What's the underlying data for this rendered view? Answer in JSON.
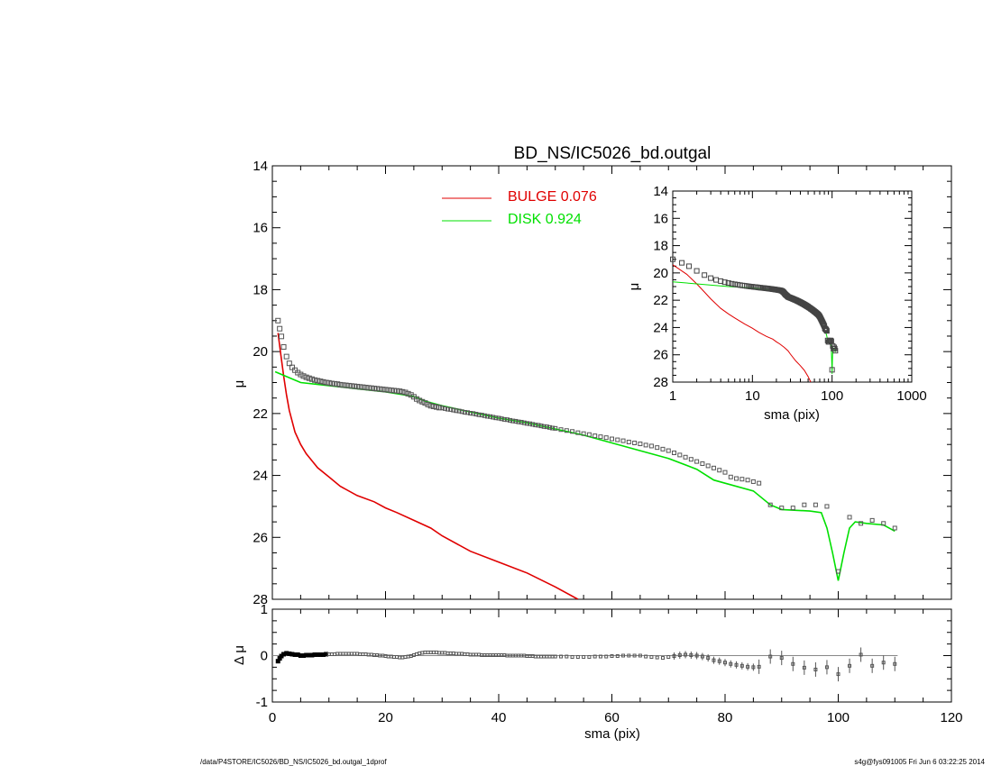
{
  "title": "BD_NS/IC5026_bd.outgal",
  "footer": {
    "left": "/data/P4STORE/IC5026/BD_NS/IC5026_bd.outgal_1dprof",
    "right": "s4g@fys091005  Fri Jun  6 03:22:25 2014"
  },
  "colors": {
    "bulge": "#e00000",
    "disk": "#00e000",
    "data": "#555555",
    "axes": "#000000"
  },
  "legend": [
    {
      "label": "BULGE  0.076",
      "color": "#e00000"
    },
    {
      "label": "DISK  0.924",
      "color": "#00e000"
    }
  ],
  "chart_data": [
    {
      "type": "line",
      "panel": "main",
      "xlabel": "",
      "ylabel": "μ",
      "xlim": [
        0,
        120
      ],
      "ylim": [
        28,
        14
      ],
      "y_inverted": true,
      "yticks": [
        14,
        16,
        18,
        20,
        22,
        24,
        26,
        28
      ],
      "series": [
        {
          "name": "BULGE  0.076",
          "color": "#e00000",
          "x": [
            1,
            1.5,
            2,
            2.5,
            3,
            4,
            5,
            6,
            8,
            10,
            12,
            15,
            18,
            20,
            22,
            25,
            28,
            30,
            35,
            40,
            45,
            50,
            54
          ],
          "y": [
            19.4,
            20.1,
            20.8,
            21.4,
            21.9,
            22.6,
            23.0,
            23.3,
            23.75,
            24.05,
            24.35,
            24.65,
            24.85,
            25.05,
            25.2,
            25.45,
            25.7,
            25.95,
            26.45,
            26.8,
            27.15,
            27.6,
            28.0
          ]
        },
        {
          "name": "DISK  0.924",
          "color": "#00e000",
          "x": [
            0.5,
            5,
            10,
            15,
            20,
            25,
            27,
            30,
            35,
            40,
            45,
            50,
            55,
            60,
            65,
            70,
            75,
            78,
            80,
            85,
            88,
            90,
            95,
            97,
            98,
            99,
            100,
            101,
            102,
            103,
            105,
            108,
            110
          ],
          "y": [
            20.65,
            21.0,
            21.1,
            21.2,
            21.3,
            21.45,
            21.6,
            21.75,
            21.95,
            22.15,
            22.3,
            22.5,
            22.7,
            22.95,
            23.2,
            23.45,
            23.8,
            24.15,
            24.25,
            24.5,
            24.95,
            25.1,
            25.15,
            25.2,
            25.7,
            26.5,
            27.4,
            26.5,
            25.7,
            25.5,
            25.55,
            25.6,
            25.8
          ]
        }
      ],
      "points": {
        "x": [
          1.0,
          1.3,
          1.6,
          2.0,
          2.5,
          3.0,
          3.5,
          4.0,
          4.5,
          5.0,
          5.5,
          6.0,
          6.5,
          7.0,
          7.5,
          8.0,
          8.5,
          9.0,
          9.5,
          10.0,
          10.5,
          11.0,
          11.5,
          12.0,
          12.5,
          13.0,
          13.5,
          14.0,
          14.5,
          15.0,
          15.5,
          16.0,
          16.5,
          17.0,
          17.5,
          18.0,
          18.5,
          19.0,
          19.5,
          20.0,
          20.5,
          21.0,
          21.5,
          22.0,
          22.5,
          23.0,
          23.5,
          24.0,
          24.5,
          25.0,
          25.5,
          26.0,
          26.5,
          27.0,
          27.5,
          28.0,
          28.5,
          29.0,
          29.5,
          30.0,
          30.5,
          31.0,
          31.5,
          32.0,
          32.5,
          33.0,
          33.5,
          34.0,
          34.5,
          35.0,
          35.5,
          36.0,
          36.5,
          37.0,
          37.5,
          38.0,
          38.5,
          39.0,
          39.5,
          40.0,
          40.5,
          41.0,
          41.5,
          42.0,
          42.5,
          43.0,
          43.5,
          44.0,
          44.5,
          45.0,
          45.5,
          46.0,
          46.5,
          47.0,
          47.5,
          48.0,
          48.5,
          49.0,
          49.5,
          50.0,
          51.0,
          52.0,
          53.0,
          54.0,
          55.0,
          56.0,
          57.0,
          58.0,
          59.0,
          60.0,
          61.0,
          62.0,
          63.0,
          64.0,
          65.0,
          66.0,
          67.0,
          68.0,
          69.0,
          70.0,
          71.0,
          72.0,
          73.0,
          74.0,
          75.0,
          76.0,
          77.0,
          78.0,
          79.0,
          80.0,
          81.0,
          82.0,
          83.0,
          84.0,
          85.0,
          86.0,
          88.0,
          90.0,
          92.0,
          94.0,
          96.0,
          98.0,
          100.0,
          102.0,
          104.0,
          106.0,
          108.0,
          110.0
        ],
        "y": [
          19.0,
          19.26,
          19.51,
          19.85,
          20.16,
          20.38,
          20.51,
          20.6,
          20.68,
          20.74,
          20.79,
          20.83,
          20.86,
          20.89,
          20.92,
          20.94,
          20.96,
          20.98,
          21.0,
          21.01,
          21.03,
          21.04,
          21.05,
          21.07,
          21.08,
          21.09,
          21.1,
          21.11,
          21.12,
          21.13,
          21.14,
          21.15,
          21.16,
          21.17,
          21.18,
          21.19,
          21.2,
          21.21,
          21.22,
          21.23,
          21.24,
          21.25,
          21.26,
          21.27,
          21.28,
          21.3,
          21.32,
          21.36,
          21.4,
          21.46,
          21.53,
          21.58,
          21.62,
          21.66,
          21.71,
          21.75,
          21.77,
          21.79,
          21.81,
          21.82,
          21.84,
          21.86,
          21.87,
          21.89,
          21.91,
          21.92,
          21.94,
          21.96,
          21.97,
          21.99,
          22.0,
          22.02,
          22.04,
          22.05,
          22.07,
          22.09,
          22.1,
          22.12,
          22.14,
          22.15,
          22.17,
          22.19,
          22.2,
          22.22,
          22.24,
          22.25,
          22.27,
          22.28,
          22.3,
          22.32,
          22.33,
          22.35,
          22.37,
          22.38,
          22.4,
          22.42,
          22.43,
          22.45,
          22.47,
          22.48,
          22.52,
          22.55,
          22.58,
          22.62,
          22.65,
          22.68,
          22.72,
          22.75,
          22.78,
          22.82,
          22.85,
          22.88,
          22.92,
          22.95,
          22.98,
          23.02,
          23.05,
          23.1,
          23.15,
          23.2,
          23.27,
          23.34,
          23.41,
          23.48,
          23.55,
          23.62,
          23.69,
          23.76,
          23.83,
          23.9,
          24.05,
          24.1,
          24.12,
          24.15,
          24.2,
          24.25,
          24.95,
          25.05,
          25.05,
          24.95,
          24.95,
          25.0,
          27.1,
          25.35,
          25.55,
          25.45,
          25.55,
          25.7
        ]
      }
    },
    {
      "type": "scatter",
      "panel": "residual",
      "xlabel": "sma (pix)",
      "ylabel": "Δ μ",
      "xlim": [
        0,
        120
      ],
      "ylim": [
        -1,
        1
      ],
      "xticks": [
        0,
        20,
        40,
        60,
        80,
        100,
        120
      ],
      "yticks": [
        1,
        0,
        -1
      ],
      "points": {
        "x": [
          1.0,
          1.3,
          1.6,
          2.0,
          2.5,
          3.0,
          3.5,
          4.0,
          4.5,
          5.0,
          5.5,
          6.0,
          6.5,
          7.0,
          7.5,
          8.0,
          8.5,
          9.0,
          9.5,
          10.0,
          10.5,
          11.0,
          11.5,
          12.0,
          12.5,
          13.0,
          13.5,
          14.0,
          14.5,
          15.0,
          15.5,
          16.0,
          16.5,
          17.0,
          17.5,
          18.0,
          18.5,
          19.0,
          19.5,
          20.0,
          20.5,
          21.0,
          21.5,
          22.0,
          22.5,
          23.0,
          23.5,
          24.0,
          24.5,
          25.0,
          25.5,
          26.0,
          26.5,
          27.0,
          27.5,
          28.0,
          28.5,
          29.0,
          29.5,
          30.0,
          30.5,
          31.0,
          31.5,
          32.0,
          32.5,
          33.0,
          33.5,
          34.0,
          34.5,
          35.0,
          35.5,
          36.0,
          36.5,
          37.0,
          37.5,
          38.0,
          38.5,
          39.0,
          39.5,
          40.0,
          40.5,
          41.0,
          41.5,
          42.0,
          42.5,
          43.0,
          43.5,
          44.0,
          44.5,
          45.0,
          45.5,
          46.0,
          46.5,
          47.0,
          47.5,
          48.0,
          48.5,
          49.0,
          49.5,
          50.0,
          51.0,
          52.0,
          53.0,
          54.0,
          55.0,
          56.0,
          57.0,
          58.0,
          59.0,
          60.0,
          61.0,
          62.0,
          63.0,
          64.0,
          65.0,
          66.0,
          67.0,
          68.0,
          69.0,
          70.0,
          71.0,
          72.0,
          73.0,
          74.0,
          75.0,
          76.0,
          77.0,
          78.0,
          79.0,
          80.0,
          81.0,
          82.0,
          83.0,
          84.0,
          85.0,
          86.0,
          88.0,
          90.0,
          92.0,
          94.0,
          96.0,
          98.0,
          100.0,
          102.0,
          104.0,
          106.0,
          108.0,
          110.0
        ],
        "y": [
          -0.12,
          -0.06,
          -0.01,
          0.03,
          0.05,
          0.04,
          0.03,
          0.02,
          0.02,
          0.0,
          0.0,
          0.01,
          0.01,
          0.01,
          0.02,
          0.02,
          0.02,
          0.02,
          0.03,
          0.03,
          0.03,
          0.03,
          0.04,
          0.04,
          0.04,
          0.04,
          0.04,
          0.04,
          0.04,
          0.04,
          0.03,
          0.03,
          0.03,
          0.02,
          0.02,
          0.01,
          0.01,
          0.0,
          0.0,
          -0.01,
          -0.02,
          -0.02,
          -0.03,
          -0.03,
          -0.04,
          -0.04,
          -0.03,
          -0.02,
          -0.01,
          0.01,
          0.03,
          0.05,
          0.06,
          0.07,
          0.07,
          0.07,
          0.07,
          0.07,
          0.06,
          0.06,
          0.06,
          0.05,
          0.05,
          0.05,
          0.04,
          0.04,
          0.04,
          0.03,
          0.03,
          0.02,
          0.02,
          0.02,
          0.02,
          0.01,
          0.01,
          0.01,
          0.01,
          0.01,
          0.01,
          0.01,
          0.01,
          0.01,
          0.0,
          0.0,
          0.0,
          0.0,
          0.0,
          0.0,
          0.0,
          -0.01,
          -0.01,
          -0.01,
          -0.02,
          -0.02,
          -0.02,
          -0.02,
          -0.02,
          -0.02,
          -0.02,
          -0.02,
          -0.02,
          -0.02,
          -0.03,
          -0.03,
          -0.03,
          -0.03,
          -0.02,
          -0.02,
          -0.02,
          -0.01,
          -0.01,
          0.0,
          0.0,
          0.0,
          0.0,
          -0.02,
          -0.03,
          -0.04,
          -0.05,
          -0.03,
          -0.01,
          0.01,
          0.02,
          0.01,
          0.0,
          -0.02,
          -0.05,
          -0.1,
          -0.12,
          -0.15,
          -0.18,
          -0.2,
          -0.22,
          -0.24,
          -0.25,
          -0.24,
          -0.02,
          -0.05,
          -0.18,
          -0.26,
          -0.3,
          -0.25,
          -0.4,
          -0.22,
          0.02,
          -0.22,
          -0.15,
          -0.18
        ]
      }
    },
    {
      "type": "line",
      "panel": "inset",
      "xlabel": "sma (pix)",
      "ylabel": "μ",
      "xscale": "log",
      "xlim": [
        1,
        1000
      ],
      "ylim": [
        28,
        14
      ],
      "y_inverted": true,
      "xticks": [
        1,
        10,
        100,
        1000
      ],
      "yticks": [
        14,
        16,
        18,
        20,
        22,
        24,
        26,
        28
      ],
      "series": [
        {
          "name": "BULGE  0.076",
          "color": "#e00000",
          "x": [
            1,
            1.5,
            2,
            2.5,
            3,
            4,
            5,
            6,
            8,
            10,
            12,
            15,
            18,
            20,
            22,
            25,
            28,
            30,
            35,
            40,
            45,
            50,
            54
          ],
          "y": [
            19.4,
            20.1,
            20.8,
            21.4,
            21.9,
            22.6,
            23.0,
            23.3,
            23.75,
            24.05,
            24.35,
            24.65,
            24.85,
            25.05,
            25.2,
            25.45,
            25.7,
            25.95,
            26.45,
            26.8,
            27.15,
            27.6,
            28.0
          ]
        },
        {
          "name": "DISK  0.924",
          "color": "#00e000",
          "x": [
            1,
            5,
            10,
            15,
            20,
            25,
            27,
            30,
            35,
            40,
            45,
            50,
            55,
            60,
            65,
            70,
            75,
            78,
            80,
            85,
            88,
            90,
            95,
            97,
            98,
            99,
            100,
            101,
            102,
            103,
            105,
            108,
            110
          ],
          "y": [
            20.65,
            21.0,
            21.1,
            21.2,
            21.3,
            21.45,
            21.6,
            21.75,
            21.95,
            22.15,
            22.3,
            22.5,
            22.7,
            22.95,
            23.2,
            23.45,
            23.8,
            24.15,
            24.25,
            24.5,
            24.95,
            25.1,
            25.15,
            25.2,
            25.7,
            26.5,
            27.4,
            26.5,
            25.7,
            25.5,
            25.55,
            25.6,
            25.8
          ]
        }
      ]
    }
  ]
}
